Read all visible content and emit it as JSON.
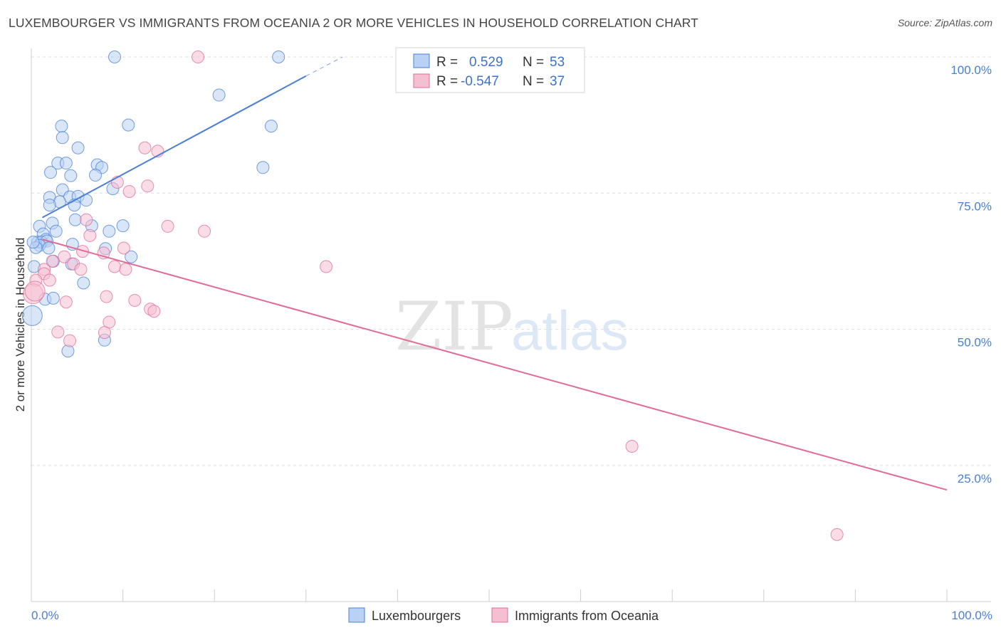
{
  "title": "LUXEMBOURGER VS IMMIGRANTS FROM OCEANIA 2 OR MORE VEHICLES IN HOUSEHOLD CORRELATION CHART",
  "source": "Source: ZipAtlas.com",
  "watermark": {
    "zip": "ZIP",
    "atlas": "atlas"
  },
  "chart_data": {
    "type": "scatter",
    "ylabel": "2 or more Vehicles in Household",
    "xlim": [
      0,
      100
    ],
    "ylim": [
      0,
      102
    ],
    "x_tick_labels": [
      "0.0%",
      "100.0%"
    ],
    "y_ticks": [
      {
        "value": 100,
        "label": "100.0%"
      },
      {
        "value": 75,
        "label": "75.0%"
      },
      {
        "value": 50,
        "label": "50.0%"
      },
      {
        "value": 25,
        "label": "25.0%"
      }
    ],
    "legend": {
      "rows": [
        {
          "r_label": "R =",
          "r_value": "0.529",
          "n_label": "N =",
          "n_value": "53"
        },
        {
          "r_label": "R =",
          "r_value": "-0.547",
          "n_label": "N =",
          "n_value": "37"
        }
      ]
    },
    "series": [
      {
        "name": "Luxembourgers",
        "color": "#4a7fd4",
        "fill": "#b9d1f2",
        "trend": {
          "x0": 1.2,
          "y0": 70.5,
          "x1": 30.0,
          "y1": 96.5,
          "dash_x1": 34.0,
          "dash_y1": 100.0
        },
        "points": [
          [
            9.1,
            100
          ],
          [
            27.0,
            100
          ],
          [
            20.5,
            93
          ],
          [
            26.2,
            87.3
          ],
          [
            10.6,
            87.5
          ],
          [
            3.3,
            87.3
          ],
          [
            3.4,
            85.2
          ],
          [
            5.1,
            83.3
          ],
          [
            2.9,
            80.5
          ],
          [
            3.8,
            80.5
          ],
          [
            7.2,
            80.2
          ],
          [
            7.7,
            79.7
          ],
          [
            2.1,
            78.8
          ],
          [
            4.3,
            78.2
          ],
          [
            7.0,
            78.3
          ],
          [
            25.3,
            79.7
          ],
          [
            8.9,
            75.8
          ],
          [
            3.4,
            75.6
          ],
          [
            4.2,
            74.3
          ],
          [
            5.1,
            74.4
          ],
          [
            2.0,
            74.2
          ],
          [
            3.1,
            73.4
          ],
          [
            6.0,
            73.7
          ],
          [
            2.0,
            72.8
          ],
          [
            4.7,
            72.8
          ],
          [
            4.8,
            70.1
          ],
          [
            2.3,
            69.5
          ],
          [
            0.9,
            68.9
          ],
          [
            6.6,
            69.0
          ],
          [
            10.0,
            69.0
          ],
          [
            8.5,
            68.0
          ],
          [
            2.7,
            68.0
          ],
          [
            1.3,
            67.5
          ],
          [
            1.6,
            66.5
          ],
          [
            0.7,
            66.0
          ],
          [
            1.1,
            66.0
          ],
          [
            1.7,
            66.2
          ],
          [
            0.9,
            65.4
          ],
          [
            4.5,
            65.6
          ],
          [
            1.9,
            64.9
          ],
          [
            0.5,
            65.0
          ],
          [
            8.1,
            64.8
          ],
          [
            10.9,
            63.3
          ],
          [
            2.4,
            62.5
          ],
          [
            4.4,
            62.0
          ],
          [
            0.3,
            61.5
          ],
          [
            5.7,
            58.5
          ],
          [
            1.5,
            55.5
          ],
          [
            2.4,
            55.7
          ],
          [
            0.1,
            52.5
          ],
          [
            8.0,
            48.0
          ],
          [
            4.0,
            46.0
          ],
          [
            0.2,
            66.0
          ]
        ]
      },
      {
        "name": "Immigrants from Oceania",
        "color": "#e06b95",
        "fill": "#f5bfd2",
        "trend": {
          "x0": 1.2,
          "y0": 66.5,
          "x1": 100.0,
          "y1": 20.5
        },
        "points": [
          [
            18.2,
            100
          ],
          [
            12.4,
            83.3
          ],
          [
            13.8,
            82.7
          ],
          [
            9.4,
            77.0
          ],
          [
            12.7,
            76.3
          ],
          [
            10.7,
            75.3
          ],
          [
            6.0,
            70.1
          ],
          [
            14.9,
            68.9
          ],
          [
            18.9,
            68.0
          ],
          [
            6.4,
            67.2
          ],
          [
            10.1,
            64.9
          ],
          [
            7.9,
            64.0
          ],
          [
            5.6,
            64.3
          ],
          [
            3.6,
            63.3
          ],
          [
            2.3,
            62.5
          ],
          [
            4.6,
            62.0
          ],
          [
            9.1,
            61.5
          ],
          [
            5.4,
            61.0
          ],
          [
            10.3,
            61.0
          ],
          [
            1.4,
            61.0
          ],
          [
            1.4,
            60.2
          ],
          [
            32.2,
            61.5
          ],
          [
            0.5,
            59.0
          ],
          [
            2.0,
            59.0
          ],
          [
            8.2,
            56.0
          ],
          [
            11.3,
            55.3
          ],
          [
            3.8,
            55.0
          ],
          [
            13.0,
            53.7
          ],
          [
            13.4,
            53.3
          ],
          [
            8.5,
            51.3
          ],
          [
            0.2,
            56.5
          ],
          [
            2.9,
            49.5
          ],
          [
            8.0,
            49.4
          ],
          [
            4.2,
            47.9
          ],
          [
            65.6,
            28.5
          ],
          [
            88.0,
            12.3
          ],
          [
            0.4,
            57.0
          ]
        ]
      }
    ]
  }
}
